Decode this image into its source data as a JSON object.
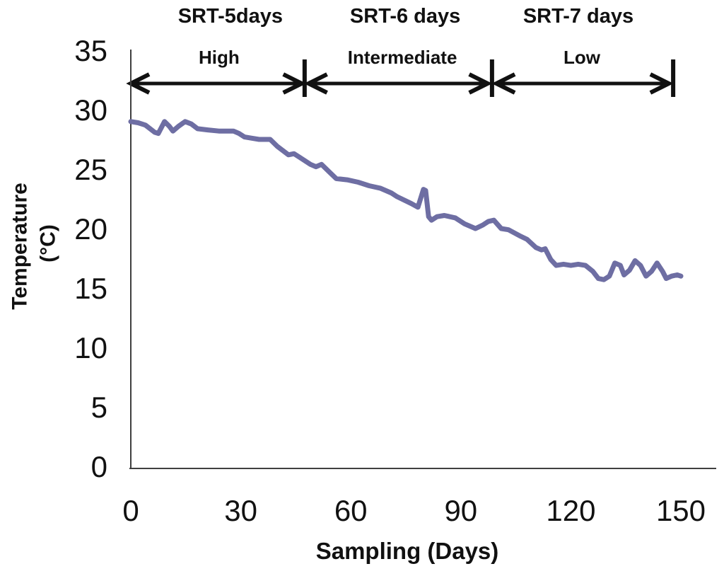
{
  "figure": {
    "background_color": "#ffffff"
  },
  "chart_data": {
    "type": "line",
    "title": "",
    "xlabel": "Sampling (Days)",
    "ylabel_line1": "Temperature",
    "ylabel_line2": "(°C)",
    "xlim": [
      0,
      150
    ],
    "ylim": [
      0,
      35
    ],
    "xticks": [
      0,
      30,
      60,
      90,
      120,
      150
    ],
    "yticks": [
      0,
      5,
      10,
      15,
      20,
      25,
      30,
      35
    ],
    "grid": false,
    "legend": "none",
    "line_color": "#6E6EA3",
    "line_width": 7,
    "axis_color": "#3f3f3f",
    "text_color": "#111111",
    "series": [
      {
        "name": "Temperature",
        "x": [
          0,
          2,
          4,
          6.5,
          7.5,
          9.2,
          10.5,
          11.5,
          13,
          14.8,
          16.5,
          18.2,
          21,
          24,
          28,
          29.5,
          31,
          33,
          35,
          38,
          40,
          43,
          44.5,
          46,
          49,
          50.5,
          52,
          54,
          56,
          59,
          62,
          65,
          68,
          71,
          72.5,
          76.5,
          78.3,
          79.8,
          80.4,
          81.2,
          82,
          83.5,
          85.5,
          88.5,
          91,
          94,
          96,
          97.5,
          99,
          101,
          103,
          106,
          108,
          110.5,
          112,
          113,
          114.5,
          116,
          118,
          120,
          122,
          124,
          126,
          127.5,
          129,
          130.5,
          132,
          133.5,
          134.5,
          136,
          137.5,
          139,
          140.5,
          142,
          143.5,
          145,
          146,
          147.5,
          149,
          150
        ],
        "y": [
          29.0,
          28.9,
          28.7,
          28.1,
          28.0,
          29.0,
          28.6,
          28.2,
          28.6,
          29.0,
          28.8,
          28.4,
          28.3,
          28.2,
          28.2,
          28.0,
          27.7,
          27.6,
          27.5,
          27.5,
          26.9,
          26.2,
          26.3,
          26.0,
          25.4,
          25.2,
          25.4,
          24.8,
          24.2,
          24.1,
          23.9,
          23.6,
          23.4,
          23.0,
          22.7,
          22.1,
          21.8,
          23.3,
          23.2,
          21.0,
          20.7,
          21.0,
          21.1,
          20.9,
          20.4,
          20.0,
          20.3,
          20.6,
          20.7,
          20.0,
          19.9,
          19.4,
          19.1,
          18.4,
          18.2,
          18.3,
          17.4,
          16.9,
          17.0,
          16.9,
          17.0,
          16.9,
          16.4,
          15.8,
          15.7,
          16.0,
          17.1,
          16.9,
          16.1,
          16.5,
          17.3,
          16.9,
          16.0,
          16.4,
          17.1,
          16.4,
          15.8,
          16.0,
          16.1,
          16.0
        ]
      }
    ],
    "annotations": {
      "arrow_color": "#111111",
      "regions": [
        {
          "srt_label": "SRT-5days",
          "level_label": "High",
          "arrow_start_day": 0,
          "arrow_end_day": 46.6,
          "bar_day": 47.4
        },
        {
          "srt_label": "SRT-6 days",
          "level_label": "Intermediate",
          "arrow_start_day": 48.5,
          "arrow_end_day": 97.3,
          "bar_day": 98.5
        },
        {
          "srt_label": "SRT-7 days",
          "level_label": "Low",
          "arrow_start_day": 99.7,
          "arrow_end_day": 146.7,
          "bar_day": 147.9
        }
      ]
    }
  }
}
